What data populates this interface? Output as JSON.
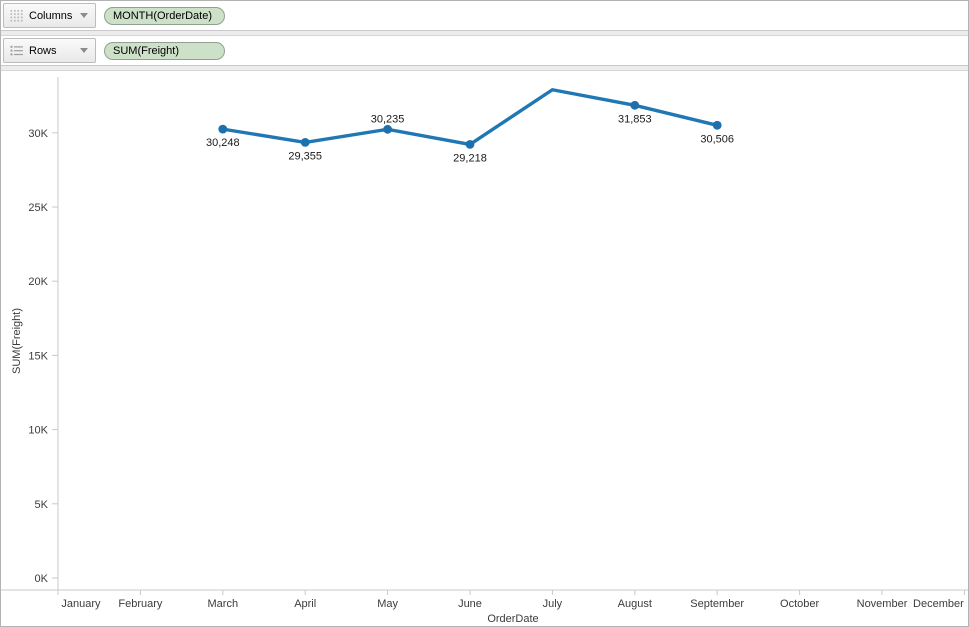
{
  "shelves": {
    "columns": {
      "label": "Columns",
      "pill": "MONTH(OrderDate)"
    },
    "rows": {
      "label": "Rows",
      "pill": "SUM(Freight)"
    }
  },
  "colors": {
    "line": "#1f77b4",
    "marker": "#1d70ab",
    "axis_line": "#c9c9c9",
    "tick_text": "#3c3c3c",
    "axis_title_text": "#3c3c3c",
    "data_label_text": "#1a1a1a",
    "pill_bg": "#cde1c9",
    "pill_border": "#8fa18f"
  },
  "chart_data": {
    "type": "line",
    "title": "",
    "xlabel": "OrderDate",
    "ylabel": "SUM(Freight)",
    "grid": "off",
    "legend": "none",
    "ylim": [
      0,
      34500
    ],
    "x_categories": [
      "January",
      "February",
      "March",
      "April",
      "May",
      "June",
      "July",
      "August",
      "September",
      "October",
      "November",
      "December"
    ],
    "y_ticks": [
      {
        "value": 0,
        "label": "0K"
      },
      {
        "value": 5000,
        "label": "5K"
      },
      {
        "value": 10000,
        "label": "10K"
      },
      {
        "value": 15000,
        "label": "15K"
      },
      {
        "value": 20000,
        "label": "20K"
      },
      {
        "value": 25000,
        "label": "25K"
      },
      {
        "value": 30000,
        "label": "30K"
      }
    ],
    "series": [
      {
        "name": "SUM(Freight)",
        "points": [
          {
            "month": "March",
            "value": 30248,
            "label": "30,248",
            "label_position": "below",
            "marker": true
          },
          {
            "month": "April",
            "value": 29355,
            "label": "29,355",
            "label_position": "below",
            "marker": true
          },
          {
            "month": "May",
            "value": 30235,
            "label": "30,235",
            "label_position": "above",
            "marker": true
          },
          {
            "month": "June",
            "value": 29218,
            "label": "29,218",
            "label_position": "below",
            "marker": true
          },
          {
            "month": "July",
            "value": 32900,
            "label": null,
            "label_position": null,
            "marker": false
          },
          {
            "month": "August",
            "value": 31853,
            "label": "31,853",
            "label_position": "below",
            "marker": true
          },
          {
            "month": "September",
            "value": 30506,
            "label": "30,506",
            "label_position": "below",
            "marker": true
          }
        ]
      }
    ]
  }
}
